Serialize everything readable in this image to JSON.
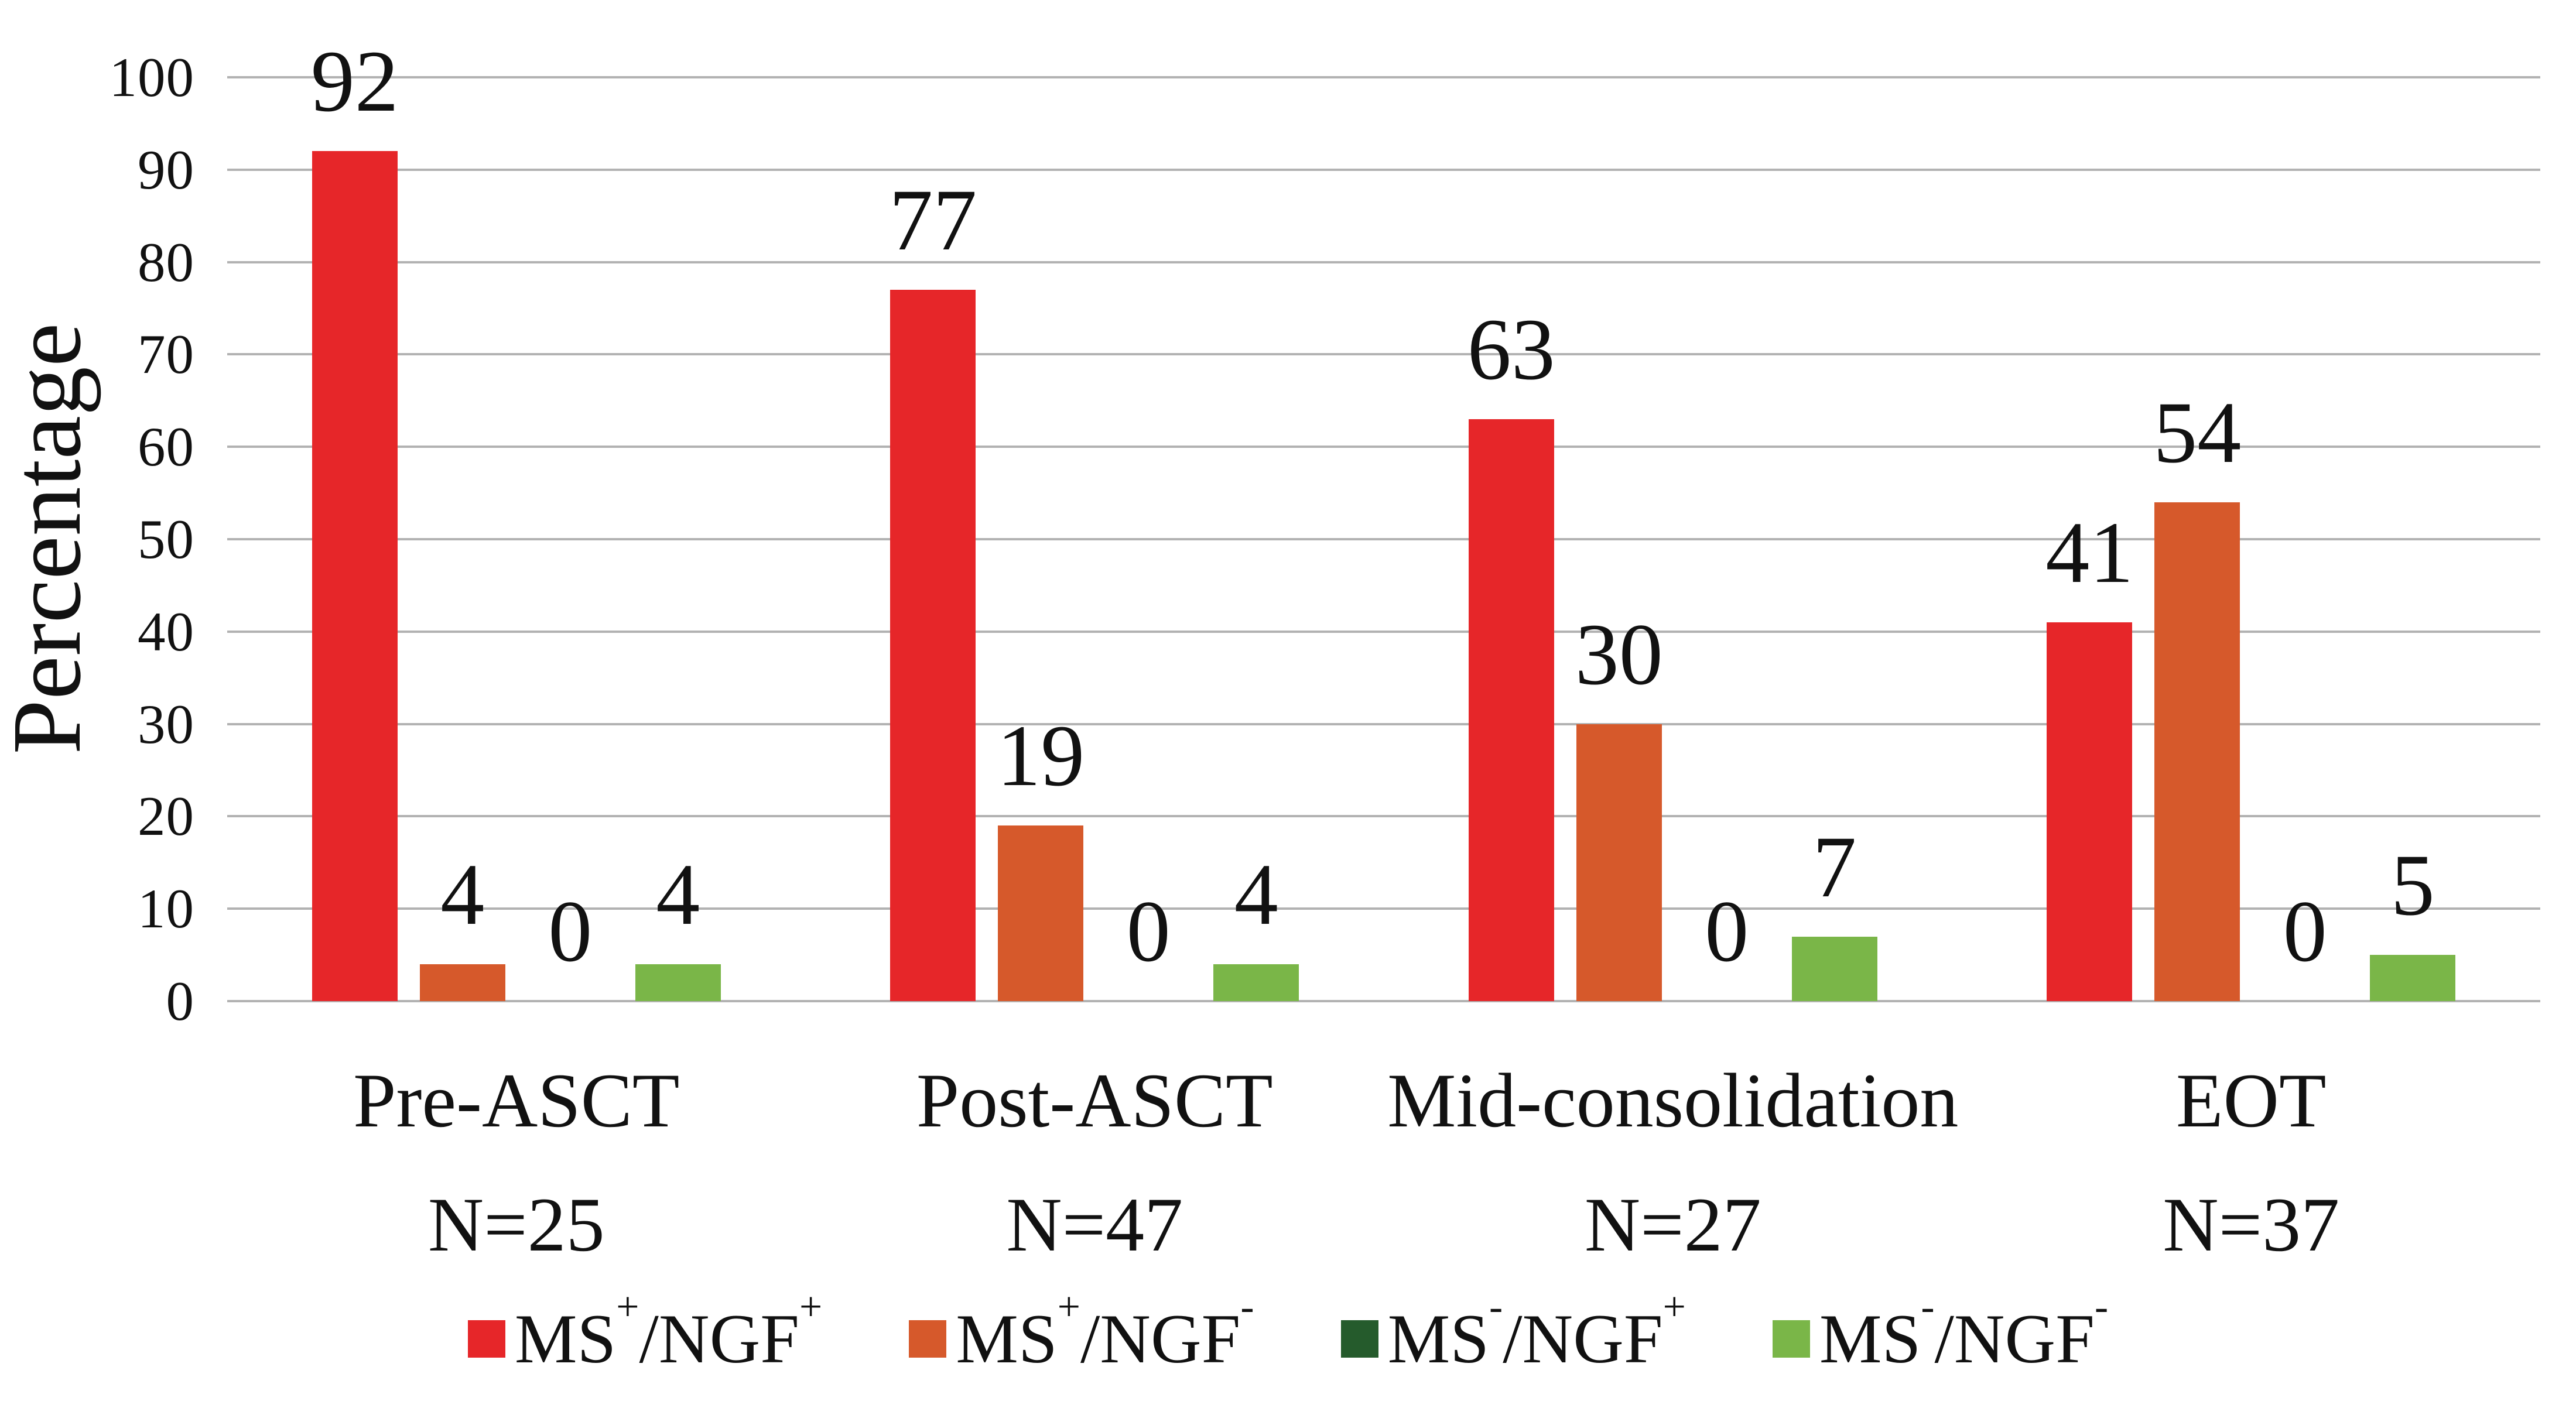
{
  "figure": {
    "background": "#ffffff",
    "gridline_color": "#b2b2b2",
    "text_color": "#111111"
  },
  "chart_data": {
    "type": "bar",
    "title": "",
    "xlabel": "",
    "ylabel": "Percentage",
    "ylim": [
      0,
      100
    ],
    "y_ticks": [
      100,
      90,
      80,
      70,
      60,
      50,
      40,
      30,
      20,
      10,
      0
    ],
    "grid": true,
    "legend_position": "bottom",
    "categories": [
      {
        "label": "Pre-ASCT",
        "n_label": "N=25"
      },
      {
        "label": "Post-ASCT",
        "n_label": "N=47"
      },
      {
        "label": "Mid-consolidation",
        "n_label": "N=27"
      },
      {
        "label": "EOT",
        "n_label": "N=37"
      }
    ],
    "series": [
      {
        "name": "MS+/NGF+",
        "color": "#e62629",
        "values": [
          92,
          77,
          63,
          41
        ]
      },
      {
        "name": "MS+/NGF-",
        "color": "#d6592b",
        "values": [
          4,
          19,
          30,
          54
        ]
      },
      {
        "name": "MS-/NGF+",
        "color": "#255b2c",
        "values": [
          0,
          0,
          0,
          0
        ]
      },
      {
        "name": "MS-/NGF-",
        "color": "#7ab648",
        "values": [
          4,
          4,
          7,
          5
        ]
      }
    ]
  }
}
